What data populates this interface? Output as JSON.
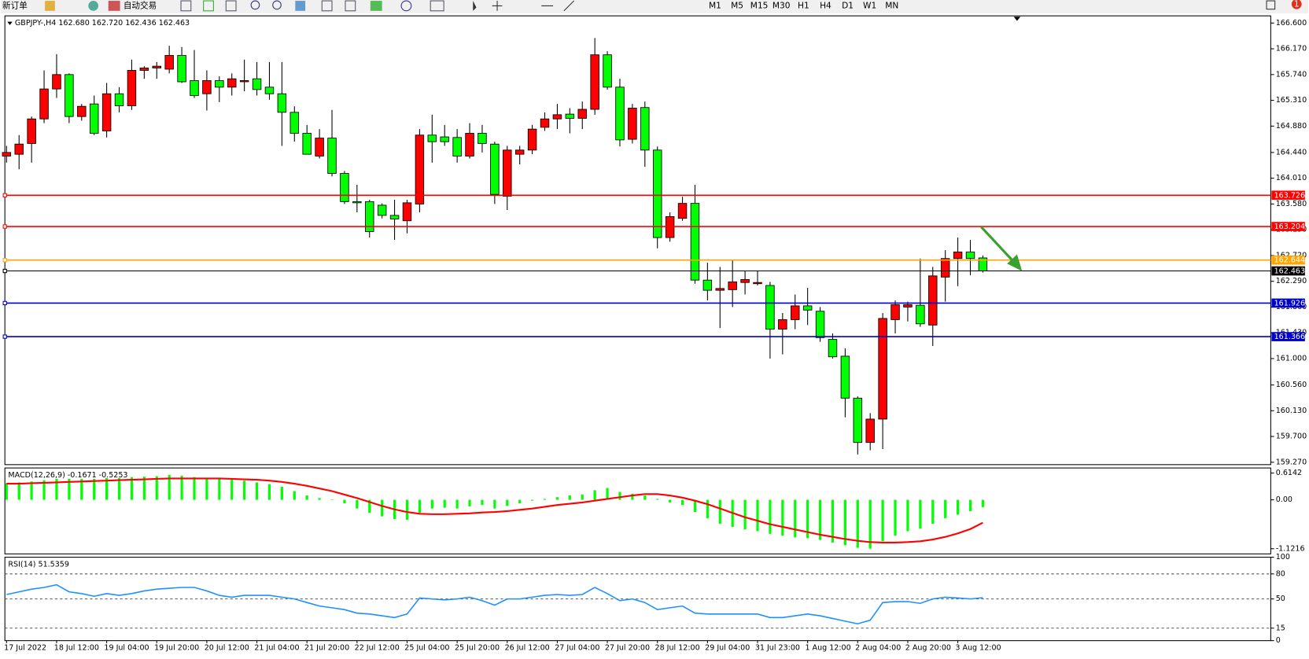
{
  "toolbar": {
    "new_order": "新订单",
    "auto_trading": "自动交易",
    "periods": [
      "M1",
      "M5",
      "M15",
      "M30",
      "H1",
      "H4",
      "D1",
      "W1",
      "MN"
    ],
    "badge": "1"
  },
  "chart_data": [
    {
      "type": "candlestick",
      "title": "GBPJPY-,H4  162.680 162.720 162.436 162.463",
      "categories": [
        "17 Jul 2022",
        null,
        null,
        null,
        "18 Jul 12:00",
        null,
        null,
        null,
        "19 Jul 04:00",
        null,
        null,
        null,
        "19 Jul 20:00",
        null,
        null,
        null,
        "20 Jul 12:00",
        null,
        null,
        null,
        "21 Jul 04:00",
        null,
        null,
        null,
        "21 Jul 20:00",
        null,
        null,
        null,
        "22 Jul 12:00",
        null,
        null,
        null,
        "25 Jul 04:00",
        null,
        null,
        null,
        "25 Jul 20:00",
        null,
        null,
        null,
        "26 Jul 12:00",
        null,
        null,
        null,
        "27 Jul 04:00",
        null,
        null,
        null,
        "27 Jul 20:00",
        null,
        null,
        null,
        "28 Jul 12:00",
        null,
        null,
        null,
        "29 Jul 04:00",
        null,
        null,
        null,
        "31 Jul 23:00",
        null,
        null,
        null,
        "1 Aug 12:00",
        null,
        null,
        null,
        "2 Aug 04:00",
        null,
        null,
        null,
        "2 Aug 20:00",
        null,
        null,
        null,
        "3 Aug 12:00",
        null,
        null
      ],
      "open": [
        164.38,
        164.41,
        164.59,
        165.0,
        165.5,
        165.74,
        165.04,
        165.25,
        164.8,
        165.42,
        165.22,
        165.81,
        165.85,
        165.83,
        166.06,
        165.64,
        165.42,
        165.64,
        165.53,
        165.62,
        165.67,
        165.53,
        165.42,
        165.11,
        164.76,
        164.38,
        164.68,
        164.09,
        163.62,
        163.62,
        163.56,
        163.39,
        163.3,
        163.58,
        164.73,
        164.7,
        164.69,
        164.38,
        164.76,
        164.58,
        163.71,
        164.41,
        164.48,
        164.86,
        165.0,
        165.08,
        165.01,
        165.16,
        166.07,
        165.53,
        164.66,
        165.19,
        164.48,
        163.02,
        163.34,
        163.59,
        162.31,
        162.14,
        162.15,
        162.27,
        162.25,
        162.22,
        161.49,
        161.65,
        161.88,
        161.79,
        161.32,
        161.04,
        160.34,
        159.6,
        159.99,
        161.65,
        161.86,
        161.89,
        161.56,
        162.36,
        162.67,
        162.78,
        162.68
      ],
      "high": [
        164.55,
        164.73,
        165.04,
        165.81,
        166.08,
        165.76,
        165.25,
        165.39,
        165.6,
        165.53,
        165.99,
        165.88,
        165.95,
        166.22,
        166.2,
        166.15,
        165.81,
        165.71,
        165.76,
        165.99,
        165.95,
        165.95,
        165.95,
        165.21,
        164.9,
        164.83,
        165.15,
        164.13,
        163.9,
        163.65,
        163.59,
        163.65,
        163.65,
        164.83,
        165.07,
        164.9,
        164.83,
        164.93,
        164.9,
        164.62,
        164.55,
        164.55,
        164.9,
        165.11,
        165.25,
        165.18,
        165.29,
        166.35,
        166.13,
        165.67,
        165.25,
        165.29,
        164.54,
        163.44,
        163.7,
        163.9,
        162.6,
        162.53,
        162.65,
        162.46,
        162.46,
        162.28,
        161.76,
        162.07,
        162.18,
        161.86,
        161.42,
        161.17,
        160.37,
        160.09,
        161.76,
        161.97,
        161.95,
        162.67,
        162.53,
        162.81,
        163.02,
        162.98,
        162.72
      ],
      "low": [
        164.27,
        164.16,
        164.27,
        164.93,
        165.35,
        164.93,
        164.97,
        164.73,
        164.69,
        165.11,
        165.15,
        165.67,
        165.67,
        165.76,
        165.6,
        165.35,
        165.14,
        165.28,
        165.39,
        165.46,
        165.39,
        165.32,
        164.55,
        164.62,
        164.41,
        164.34,
        164.04,
        163.58,
        163.44,
        163.02,
        163.34,
        162.98,
        163.09,
        163.44,
        164.27,
        164.55,
        164.27,
        164.34,
        164.44,
        163.58,
        163.48,
        164.24,
        164.41,
        164.8,
        164.83,
        164.76,
        164.83,
        165.07,
        165.49,
        164.54,
        164.59,
        164.2,
        162.84,
        162.95,
        163.3,
        162.25,
        161.97,
        161.51,
        161.86,
        162.07,
        162.22,
        161.0,
        161.07,
        161.49,
        161.56,
        161.28,
        161.0,
        160.02,
        159.4,
        159.47,
        159.49,
        161.42,
        161.62,
        161.53,
        161.21,
        161.95,
        162.21,
        162.39,
        162.436
      ],
      "close": [
        164.44,
        164.58,
        165.0,
        165.5,
        165.74,
        165.04,
        165.21,
        164.76,
        165.42,
        165.22,
        165.81,
        165.85,
        165.88,
        166.06,
        165.62,
        165.39,
        165.64,
        165.53,
        165.67,
        165.64,
        165.49,
        165.42,
        165.11,
        164.76,
        164.41,
        164.68,
        164.09,
        163.62,
        163.6,
        163.12,
        163.39,
        163.33,
        163.6,
        164.73,
        164.62,
        164.62,
        164.38,
        164.76,
        164.59,
        163.74,
        164.48,
        164.48,
        164.83,
        165.0,
        165.07,
        165.01,
        165.16,
        166.07,
        165.53,
        164.65,
        165.18,
        164.48,
        163.02,
        163.37,
        163.59,
        162.31,
        162.14,
        162.17,
        162.28,
        162.32,
        162.27,
        161.49,
        161.65,
        161.88,
        161.81,
        161.35,
        161.03,
        160.34,
        159.6,
        159.99,
        161.67,
        161.9,
        161.9,
        161.58,
        162.38,
        162.67,
        162.78,
        162.67,
        162.463
      ],
      "up_color": "#ff0000",
      "down_color": "#00ff00",
      "ylim": [
        159.23,
        166.72
      ],
      "yticks": [
        {
          "value": 166.6,
          "label": "166.600"
        },
        {
          "value": 166.17,
          "label": "166.170"
        },
        {
          "value": 165.74,
          "label": "165.740"
        },
        {
          "value": 165.31,
          "label": "165.310"
        },
        {
          "value": 164.88,
          "label": "164.880"
        },
        {
          "value": 164.44,
          "label": "164.440"
        },
        {
          "value": 164.01,
          "label": "164.010"
        },
        {
          "value": 163.58,
          "label": "163.580"
        },
        {
          "value": 163.15,
          "label": "163.150"
        },
        {
          "value": 162.72,
          "label": "162.720"
        },
        {
          "value": 162.29,
          "label": "162.290"
        },
        {
          "value": 161.86,
          "label": "161.860"
        },
        {
          "value": 161.43,
          "label": "161.430"
        },
        {
          "value": 161.0,
          "label": "161.000"
        },
        {
          "value": 160.56,
          "label": "160.560"
        },
        {
          "value": 160.13,
          "label": "160.130"
        },
        {
          "value": 159.7,
          "label": "159.700"
        },
        {
          "value": 159.27,
          "label": "159.270"
        }
      ],
      "levels": [
        {
          "value": 163.726,
          "color": "#ff0000"
        },
        {
          "value": 163.204,
          "color": "#ff0000"
        },
        {
          "value": 162.644,
          "color": "#ffa500"
        },
        {
          "value": 162.463,
          "color": "#000000"
        },
        {
          "value": 161.926,
          "color": "#0000cd"
        },
        {
          "value": 161.366,
          "color": "#0000cd"
        }
      ]
    },
    {
      "type": "macd",
      "title": "MACD(12,26,9) -0.1671 -0.5253",
      "series": [
        {
          "color": "#00ff00",
          "values": [
            0.38,
            0.4,
            0.42,
            0.45,
            0.48,
            0.48,
            0.48,
            0.48,
            0.5,
            0.5,
            0.52,
            0.53,
            0.54,
            0.57,
            0.55,
            0.52,
            0.5,
            0.48,
            0.46,
            0.44,
            0.4,
            0.36,
            0.3,
            0.2,
            0.1,
            0.04,
            0.01,
            -0.08,
            -0.2,
            -0.3,
            -0.38,
            -0.44,
            -0.46,
            -0.3,
            -0.2,
            -0.18,
            -0.2,
            -0.15,
            -0.12,
            -0.2,
            -0.14,
            -0.08,
            -0.02,
            0.02,
            0.06,
            0.1,
            0.12,
            0.22,
            0.27,
            0.18,
            0.14,
            0.1,
            0.02,
            -0.06,
            -0.12,
            -0.28,
            -0.42,
            -0.55,
            -0.62,
            -0.68,
            -0.72,
            -0.78,
            -0.82,
            -0.86,
            -0.88,
            -0.92,
            -0.98,
            -1.04,
            -1.1,
            -1.12,
            -0.95,
            -0.82,
            -0.72,
            -0.66,
            -0.55,
            -0.42,
            -0.34,
            -0.26,
            -0.1671
          ]
        },
        {
          "color": "#ff0000",
          "values": [
            0.37,
            0.37,
            0.38,
            0.39,
            0.4,
            0.41,
            0.42,
            0.43,
            0.44,
            0.45,
            0.46,
            0.47,
            0.48,
            0.49,
            0.49,
            0.49,
            0.49,
            0.49,
            0.48,
            0.47,
            0.46,
            0.44,
            0.41,
            0.37,
            0.32,
            0.26,
            0.2,
            0.12,
            0.04,
            -0.05,
            -0.14,
            -0.22,
            -0.28,
            -0.32,
            -0.33,
            -0.33,
            -0.32,
            -0.31,
            -0.29,
            -0.28,
            -0.26,
            -0.23,
            -0.2,
            -0.16,
            -0.12,
            -0.09,
            -0.06,
            -0.02,
            0.02,
            0.06,
            0.1,
            0.13,
            0.13,
            0.1,
            0.05,
            -0.02,
            -0.1,
            -0.2,
            -0.3,
            -0.4,
            -0.48,
            -0.56,
            -0.62,
            -0.68,
            -0.74,
            -0.8,
            -0.85,
            -0.9,
            -0.94,
            -0.97,
            -0.98,
            -0.98,
            -0.97,
            -0.95,
            -0.91,
            -0.85,
            -0.77,
            -0.67,
            -0.5253
          ]
        }
      ],
      "ylim": [
        -1.24,
        0.73
      ],
      "yticks": [
        0.6142,
        {
          "value": 0,
          "label": "0.00"
        },
        -1.1216
      ]
    },
    {
      "type": "line",
      "title": "RSI(14) 51.5359",
      "series": [
        {
          "color": "#1e90ff",
          "values": [
            55.3,
            58.5,
            61.7,
            63.8,
            67.0,
            58.5,
            56.4,
            53.2,
            56.4,
            54.3,
            56.4,
            59.6,
            61.7,
            62.8,
            63.8,
            63.8,
            59.6,
            54.3,
            52.1,
            54.3,
            54.3,
            54.3,
            52.1,
            50.0,
            45.7,
            41.5,
            39.4,
            37.2,
            33.0,
            31.9,
            29.8,
            27.7,
            31.9,
            51.1,
            50.0,
            48.9,
            50.0,
            52.1,
            47.9,
            42.6,
            50.0,
            50.0,
            52.1,
            54.3,
            55.3,
            54.3,
            55.3,
            63.8,
            56.4,
            47.9,
            50.0,
            45.7,
            37.2,
            39.4,
            41.5,
            33.0,
            31.9,
            31.9,
            31.9,
            31.9,
            31.9,
            27.7,
            27.7,
            29.8,
            31.9,
            29.8,
            26.6,
            23.4,
            20.2,
            24.5,
            45.7,
            46.8,
            46.8,
            44.7,
            50.0,
            52.1,
            51.1,
            50.0,
            51.5359
          ]
        }
      ],
      "ylim": [
        0,
        100
      ],
      "yticks": [
        100,
        80,
        50,
        15,
        0
      ],
      "levels": [
        80,
        50,
        15
      ]
    }
  ]
}
